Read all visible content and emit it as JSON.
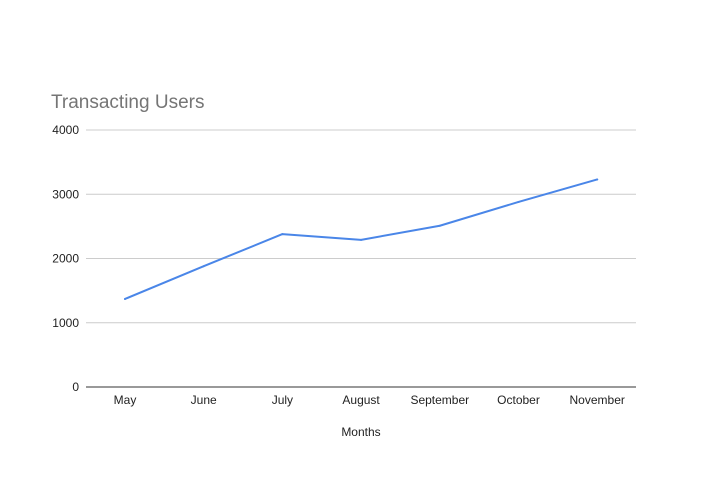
{
  "chart_data": {
    "type": "line",
    "title": "Transacting Users",
    "xlabel": "Months",
    "ylabel": "",
    "categories": [
      "May",
      "June",
      "July",
      "August",
      "September",
      "October",
      "November"
    ],
    "series": [
      {
        "color": "#4a86e8",
        "values": [
          1370,
          1880,
          2380,
          2290,
          2510,
          2880,
          3230
        ]
      }
    ],
    "ylim": [
      0,
      4000
    ],
    "yticks": [
      "0",
      "1000",
      "2000",
      "3000",
      "4000"
    ],
    "grid": true,
    "legend": "none"
  }
}
